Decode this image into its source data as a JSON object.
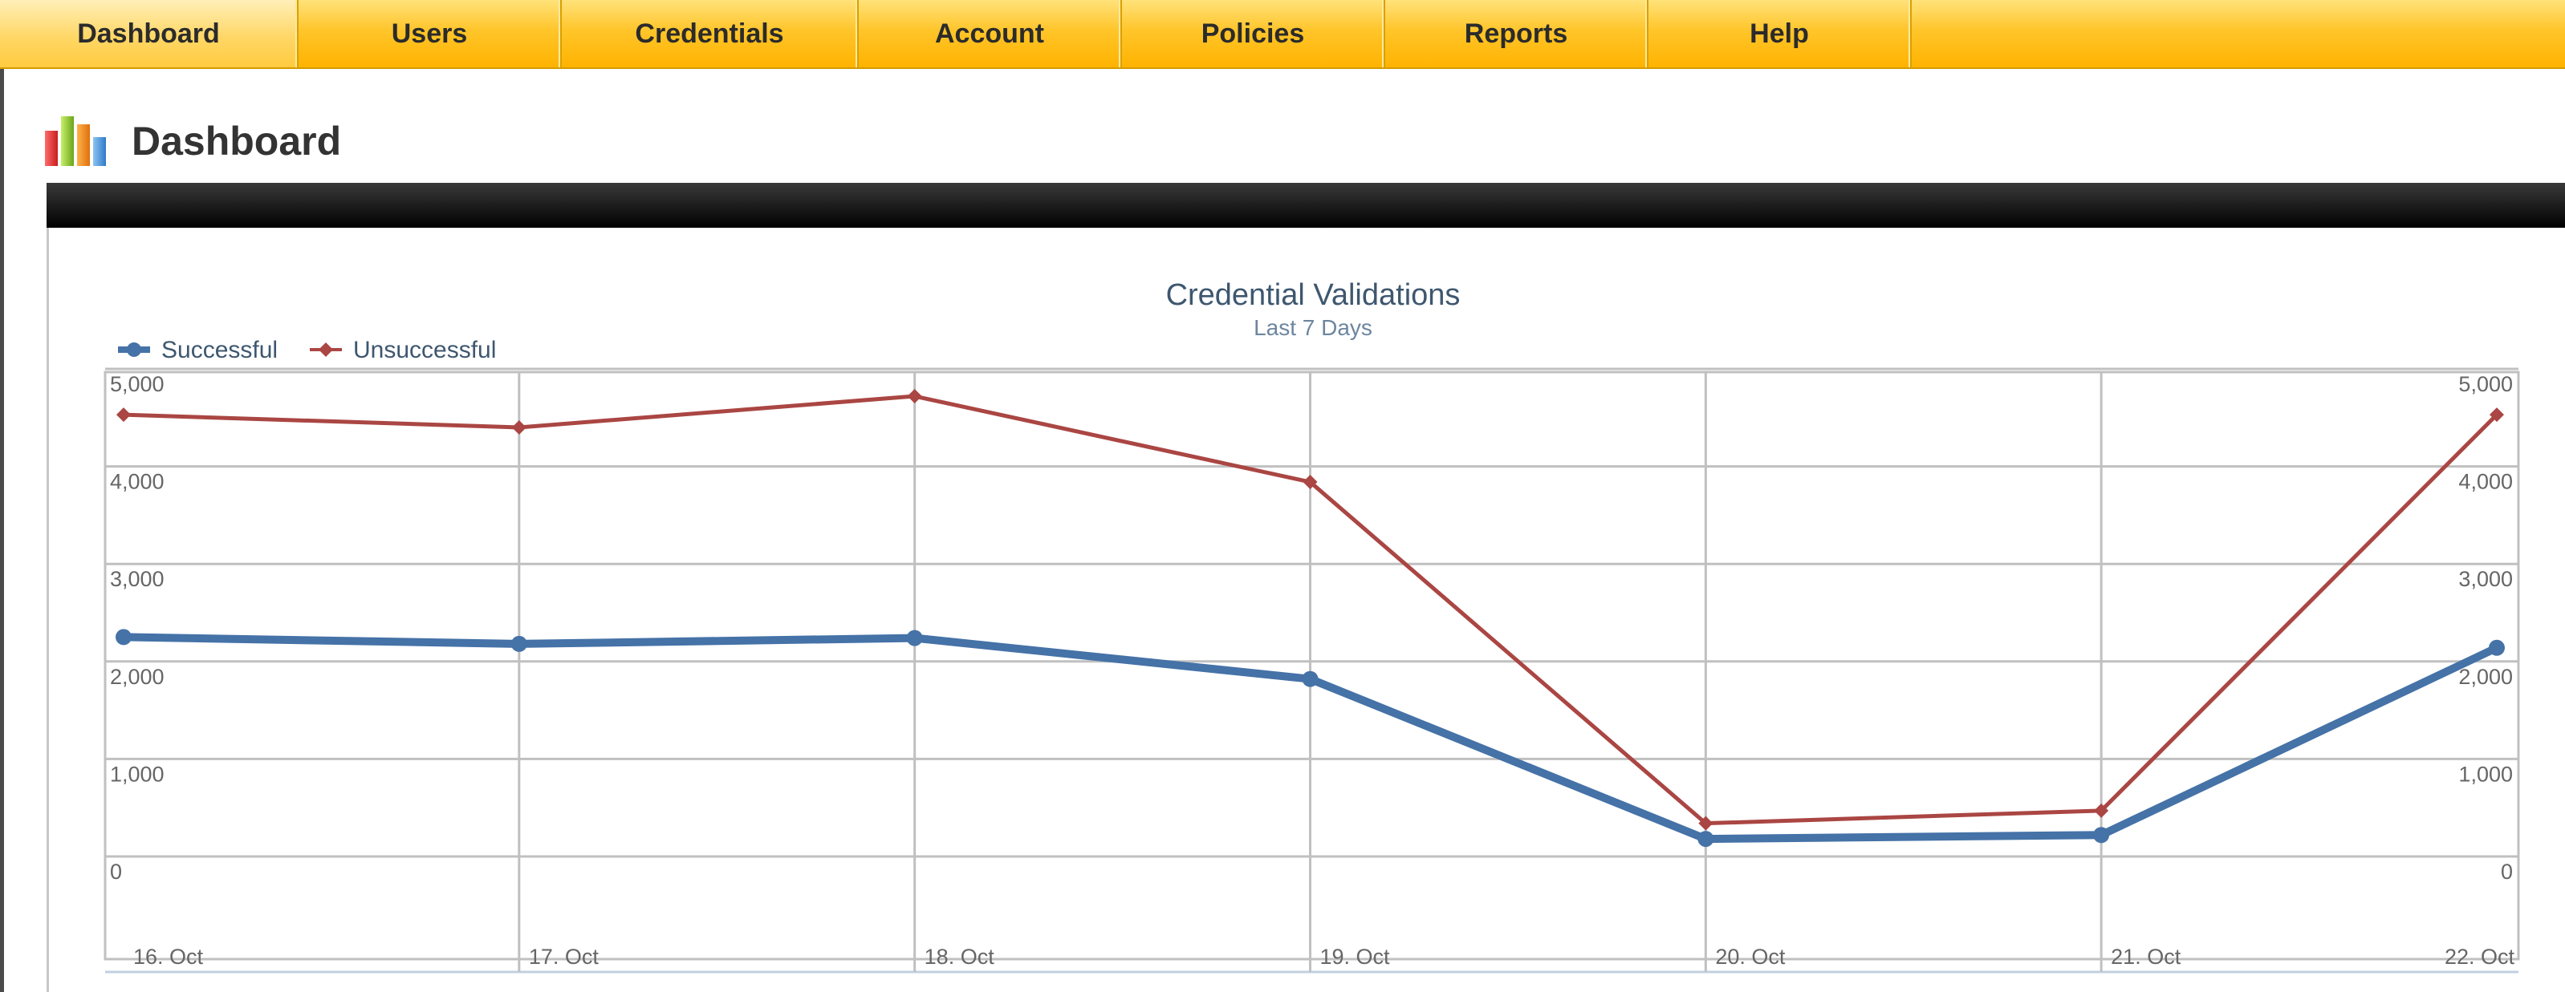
{
  "nav": {
    "items": [
      {
        "label": "Dashboard",
        "active": true
      },
      {
        "label": "Users"
      },
      {
        "label": "Credentials"
      },
      {
        "label": "Account"
      },
      {
        "label": "Policies"
      },
      {
        "label": "Reports"
      },
      {
        "label": "Help"
      }
    ]
  },
  "page": {
    "title": "Dashboard",
    "icon": "bar-chart-icon"
  },
  "colors": {
    "successful": "#4572a7",
    "unsuccessful": "#aa4643",
    "nav": "#ffc52a"
  },
  "chart_data": {
    "type": "line",
    "title": "Credential Validations",
    "subtitle": "Last 7 Days",
    "categories": [
      "16. Oct",
      "17. Oct",
      "18. Oct",
      "19. Oct",
      "20. Oct",
      "21. Oct",
      "22. Oct"
    ],
    "series": [
      {
        "name": "Successful",
        "color": "#4572a7",
        "marker": "circle",
        "values": [
          2250,
          2180,
          2240,
          1820,
          180,
          220,
          2140
        ]
      },
      {
        "name": "Unsuccessful",
        "color": "#aa4643",
        "marker": "diamond",
        "values": [
          4530,
          4400,
          4720,
          3840,
          340,
          470,
          4530
        ]
      }
    ],
    "y_ticks": [
      "0",
      "1,000",
      "2,000",
      "3,000",
      "4,000",
      "5,000"
    ],
    "y_tick_values": [
      0,
      1000,
      2000,
      3000,
      4000,
      5000
    ],
    "ylim": [
      0,
      5000
    ],
    "legend_position": "top-left",
    "grid": true
  }
}
